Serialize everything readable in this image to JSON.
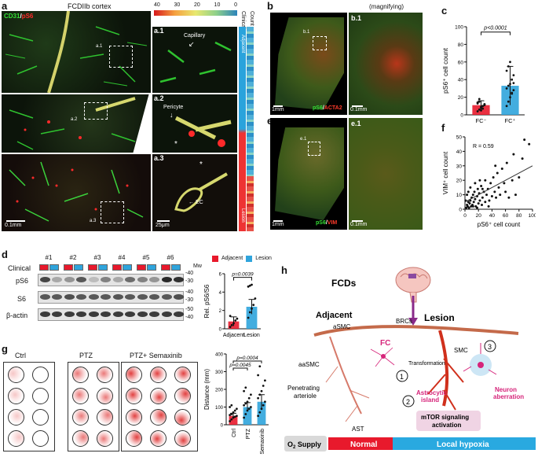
{
  "panels": {
    "a": {
      "label": "a",
      "title": "FCDIIb cortex",
      "stain": [
        "CD31",
        "/",
        "pS6"
      ],
      "sub": [
        "a.1",
        "a.2",
        "a.3"
      ],
      "tags": {
        "capillary": "Capillary",
        "pericyte": "Pericyte",
        "ec": "EC",
        "asterisk": "*"
      },
      "scale_left": "0.1mm",
      "scale_right": "25μm",
      "colorbar": {
        "ticks": [
          "40",
          "30",
          "20",
          "10",
          "0"
        ],
        "clinical_label": "Clinical",
        "count_label": "Count",
        "adjacent": "Adjacent",
        "lesion": "Lesion"
      }
    },
    "b": {
      "label": "b",
      "sub": "b.1",
      "magnifying": "(magnifying)",
      "stain": [
        "pS6",
        "/",
        "ACTA2"
      ],
      "scale_left": "1mm",
      "scale_right": "0.1mm"
    },
    "e": {
      "label": "e",
      "sub": "e.1",
      "stain": [
        "pS6",
        "/",
        "VIM"
      ],
      "scale_left": "1mm",
      "scale_right": "0.1mm"
    },
    "c": {
      "label": "c"
    },
    "f": {
      "label": "f"
    },
    "d": {
      "label": "d",
      "samples": [
        "#1",
        "#2",
        "#3",
        "#4",
        "#5",
        "#6"
      ],
      "clinical": "Clinical",
      "rows": [
        "pS6",
        "S6",
        "β-actin"
      ],
      "mw_title": "Mw",
      "mw": [
        "-40",
        "-30",
        "-40",
        "-30",
        "-50",
        "-40"
      ],
      "legend": [
        "Adjacent",
        "Lesion"
      ]
    },
    "g": {
      "label": "g",
      "groups": [
        "Ctrl",
        "PTZ",
        "PTZ+ Semaxinib"
      ]
    },
    "h": {
      "label": "h",
      "fcds": "FCDs",
      "adjacent": "Adjacent",
      "lesion": "Lesion",
      "labels": {
        "asmc": "aSMC",
        "aasmc": "aaSMC",
        "brcs": "BRCs",
        "smc": "SMC",
        "fc": "FC",
        "transformation": "Transformation",
        "penetrating": [
          "Penetrating",
          "arteriole"
        ],
        "ast": "AST",
        "astro": [
          "Astrocytic",
          "island"
        ],
        "neuron": [
          "Neuron",
          "aberration"
        ],
        "mtor": [
          "mTOR signaling",
          "activation"
        ]
      },
      "steps": [
        "1",
        "2",
        "3"
      ],
      "supply": {
        "o2": "O",
        "o2_sub": "2",
        "o2_rest": " Supply",
        "normal": "Normal",
        "hypoxia": "Local hypoxia"
      }
    }
  },
  "colors": {
    "adjacent": "#e8192c",
    "lesion": "#2fa4dc",
    "pink": "#d6247a",
    "lesion_bar": "#29a9e0"
  },
  "chart_data": [
    {
      "panel": "c",
      "type": "bar",
      "categories": [
        "FC⁻",
        "FC⁺"
      ],
      "values": [
        11,
        33
      ],
      "errors": [
        5,
        22
      ],
      "ylabel": "pS6⁺ cell count",
      "ylim": [
        0,
        100
      ],
      "yticks": [
        0,
        20,
        40,
        60,
        80,
        100
      ],
      "annotation": "p<0.0001",
      "points": [
        [
          4,
          6,
          8,
          10,
          12,
          13,
          15,
          9,
          7,
          11,
          14,
          18,
          5,
          10,
          12
        ],
        [
          10,
          15,
          20,
          25,
          28,
          30,
          33,
          35,
          40,
          45,
          50,
          55,
          60,
          24,
          36
        ]
      ]
    },
    {
      "panel": "f",
      "type": "scatter",
      "xlabel": "pS6⁺ cell count",
      "ylabel": "VIM⁺ cell count",
      "xlim": [
        0,
        100
      ],
      "ylim": [
        0,
        50
      ],
      "xticks": [
        0,
        20,
        40,
        60,
        80,
        100
      ],
      "yticks": [
        0,
        10,
        20,
        30,
        40,
        50
      ],
      "annotation": "R = 0.59",
      "points": [
        [
          2,
          1
        ],
        [
          3,
          3
        ],
        [
          4,
          2
        ],
        [
          5,
          5
        ],
        [
          6,
          1
        ],
        [
          7,
          4
        ],
        [
          8,
          6
        ],
        [
          9,
          2
        ],
        [
          10,
          8
        ],
        [
          11,
          3
        ],
        [
          12,
          10
        ],
        [
          13,
          5
        ],
        [
          14,
          12
        ],
        [
          15,
          7
        ],
        [
          16,
          2
        ],
        [
          18,
          9
        ],
        [
          19,
          14
        ],
        [
          20,
          4
        ],
        [
          21,
          11
        ],
        [
          22,
          6
        ],
        [
          24,
          16
        ],
        [
          25,
          3
        ],
        [
          26,
          8
        ],
        [
          28,
          12
        ],
        [
          30,
          5
        ],
        [
          30,
          20
        ],
        [
          32,
          10
        ],
        [
          34,
          14
        ],
        [
          36,
          6
        ],
        [
          38,
          18
        ],
        [
          40,
          9
        ],
        [
          42,
          22
        ],
        [
          44,
          12
        ],
        [
          46,
          8
        ],
        [
          48,
          25
        ],
        [
          50,
          15
        ],
        [
          52,
          10
        ],
        [
          55,
          28
        ],
        [
          58,
          18
        ],
        [
          60,
          12
        ],
        [
          62,
          32
        ],
        [
          65,
          8
        ],
        [
          70,
          20
        ],
        [
          72,
          38
        ],
        [
          75,
          10
        ],
        [
          80,
          22
        ],
        [
          85,
          35
        ],
        [
          88,
          48
        ],
        [
          95,
          45
        ],
        [
          1,
          6
        ],
        [
          3,
          10
        ],
        [
          5,
          12
        ],
        [
          8,
          15
        ],
        [
          12,
          2
        ],
        [
          15,
          18
        ],
        [
          18,
          1
        ],
        [
          22,
          20
        ],
        [
          26,
          14
        ],
        [
          35,
          2
        ],
        [
          45,
          30
        ]
      ],
      "fit": [
        [
          0,
          5
        ],
        [
          100,
          30
        ]
      ]
    },
    {
      "panel": "d",
      "type": "bar",
      "categories": [
        "Adjacent",
        "Lesion"
      ],
      "values": [
        0.8,
        2.4
      ],
      "errors": [
        0.5,
        0.8
      ],
      "ylabel": "Rel. pS6/S6",
      "ylim": [
        0,
        6
      ],
      "yticks": [
        0,
        2,
        4,
        6
      ],
      "annotation": "p=0.0039",
      "points": [
        [
          0.2,
          0.4,
          0.6,
          0.9,
          1.1,
          1.4
        ],
        [
          1.2,
          1.8,
          2.2,
          2.6,
          3.3,
          4.6,
          4.7,
          4.8
        ]
      ]
    },
    {
      "panel": "g",
      "type": "bar",
      "categories": [
        "Ctrl",
        "PTZ",
        "PTZ+ Semaxinib"
      ],
      "values": [
        50,
        100,
        130
      ],
      "errors": [
        15,
        25,
        40
      ],
      "ylabel": "Distance (mm)",
      "ylim": [
        0,
        400
      ],
      "yticks": [
        0,
        100,
        200,
        300,
        400
      ],
      "annotations": [
        "p=0.0045",
        "p=0.0004"
      ],
      "points": [
        [
          20,
          30,
          40,
          45,
          50,
          55,
          60,
          70,
          80,
          90,
          100,
          110
        ],
        [
          40,
          60,
          80,
          90,
          100,
          110,
          120,
          130,
          150,
          170,
          190,
          210
        ],
        [
          50,
          70,
          90,
          110,
          130,
          150,
          170,
          190,
          220,
          250,
          280,
          330
        ]
      ]
    }
  ]
}
